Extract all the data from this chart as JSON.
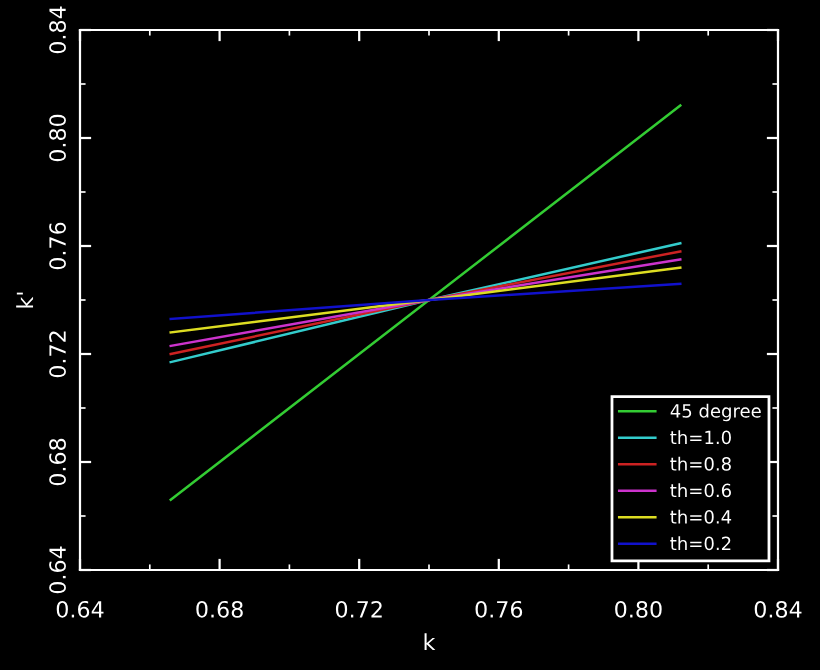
{
  "chart_data": {
    "type": "line",
    "xlabel": "k",
    "ylabel": "k'",
    "x": [
      0.666,
      0.74,
      0.812
    ],
    "series": [
      {
        "name": "45 degree",
        "color": "#33cc33",
        "values": [
          0.666,
          0.74,
          0.812
        ]
      },
      {
        "name": "th=1.0",
        "color": "#33cccc",
        "values": [
          0.717,
          0.74,
          0.761
        ]
      },
      {
        "name": "th=0.8",
        "color": "#cc2222",
        "values": [
          0.72,
          0.74,
          0.758
        ]
      },
      {
        "name": "th=0.6",
        "color": "#cc33cc",
        "values": [
          0.723,
          0.74,
          0.755
        ]
      },
      {
        "name": "th=0.4",
        "color": "#dddd22",
        "values": [
          0.728,
          0.74,
          0.752
        ]
      },
      {
        "name": "th=0.2",
        "color": "#1111cc",
        "values": [
          0.733,
          0.74,
          0.746
        ]
      }
    ],
    "xlim": [
      0.64,
      0.84
    ],
    "ylim": [
      0.64,
      0.84
    ],
    "xticks": [
      {
        "value": 0.64,
        "label": "0.64"
      },
      {
        "value": 0.68,
        "label": "0.68"
      },
      {
        "value": 0.72,
        "label": "0.72"
      },
      {
        "value": 0.76,
        "label": "0.76"
      },
      {
        "value": 0.8,
        "label": "0.80"
      },
      {
        "value": 0.84,
        "label": "0.84"
      }
    ],
    "yticks": [
      {
        "value": 0.64,
        "label": "0.64"
      },
      {
        "value": 0.68,
        "label": "0.68"
      },
      {
        "value": 0.72,
        "label": "0.72"
      },
      {
        "value": 0.76,
        "label": "0.76"
      },
      {
        "value": 0.8,
        "label": "0.80"
      },
      {
        "value": 0.84,
        "label": "0.84"
      }
    ],
    "grid": false,
    "legend": "bottom right",
    "marker": "none",
    "line_style": "solid"
  }
}
